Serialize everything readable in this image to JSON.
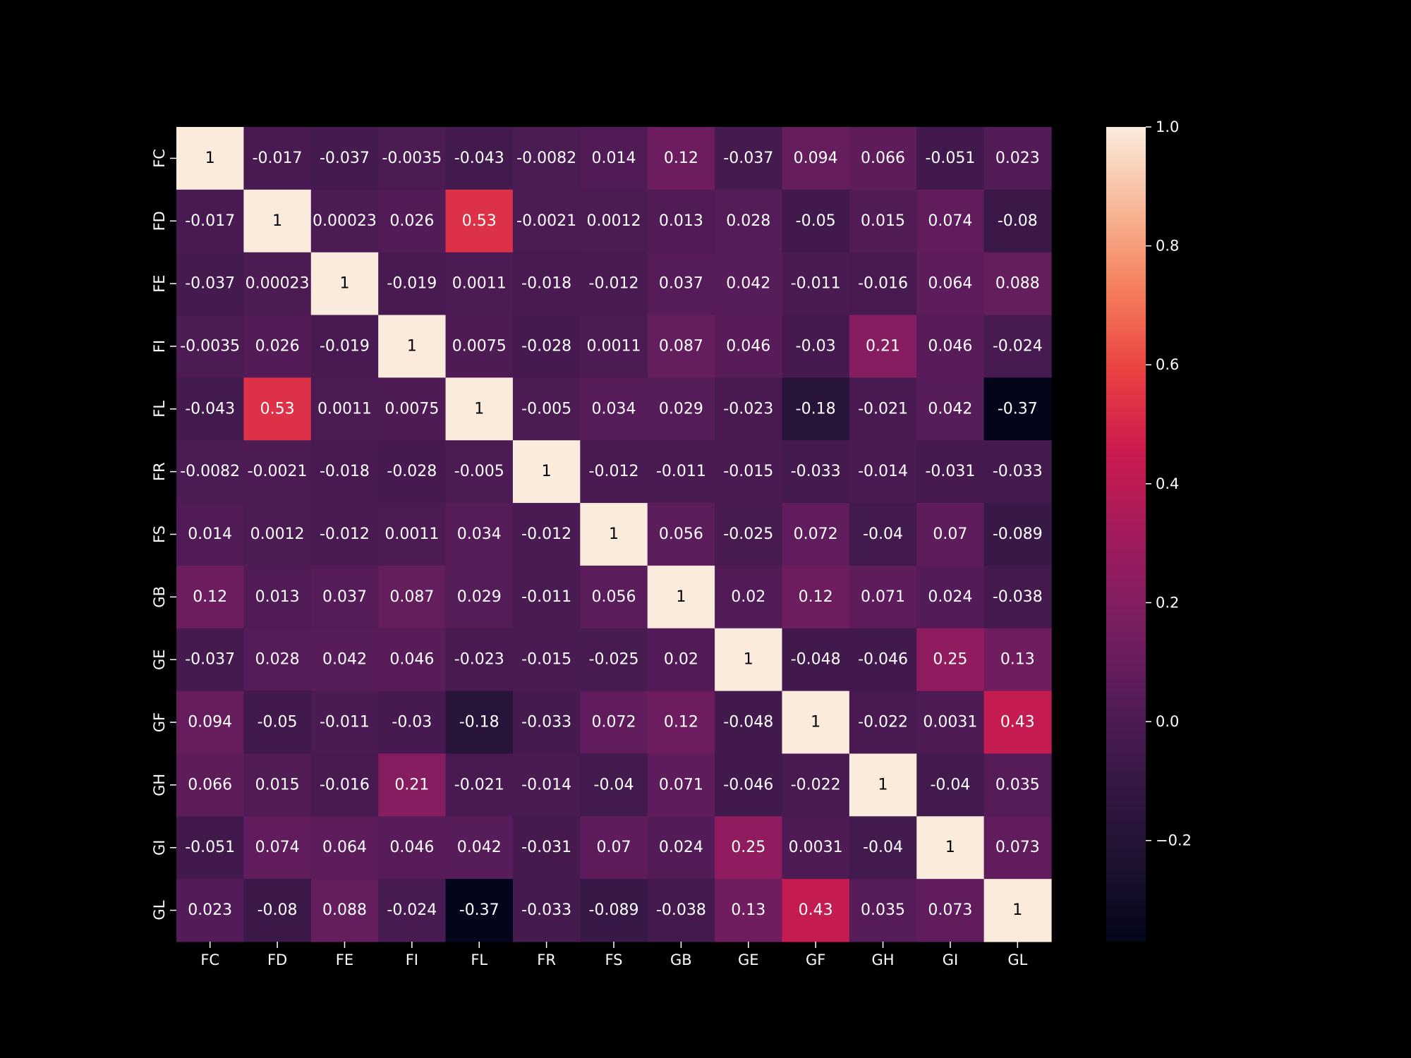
{
  "chart_data": {
    "type": "heatmap",
    "labels": [
      "FC",
      "FD",
      "FE",
      "FI",
      "FL",
      "FR",
      "FS",
      "GB",
      "GE",
      "GF",
      "GH",
      "GI",
      "GL"
    ],
    "matrix": [
      [
        1,
        -0.017,
        -0.037,
        -0.0035,
        -0.043,
        -0.0082,
        0.014,
        0.12,
        -0.037,
        0.094,
        0.066,
        -0.051,
        0.023
      ],
      [
        -0.017,
        1,
        0.00023,
        0.026,
        0.53,
        -0.0021,
        0.0012,
        0.013,
        0.028,
        -0.05,
        0.015,
        0.074,
        -0.08
      ],
      [
        -0.037,
        0.00023,
        1,
        -0.019,
        0.0011,
        -0.018,
        -0.012,
        0.037,
        0.042,
        -0.011,
        -0.016,
        0.064,
        0.088
      ],
      [
        -0.0035,
        0.026,
        -0.019,
        1,
        0.0075,
        -0.028,
        0.0011,
        0.087,
        0.046,
        -0.03,
        0.21,
        0.046,
        -0.024
      ],
      [
        -0.043,
        0.53,
        0.0011,
        0.0075,
        1,
        -0.005,
        0.034,
        0.029,
        -0.023,
        -0.18,
        -0.021,
        0.042,
        -0.37
      ],
      [
        -0.0082,
        -0.0021,
        -0.018,
        -0.028,
        -0.005,
        1,
        -0.012,
        -0.011,
        -0.015,
        -0.033,
        -0.014,
        -0.031,
        -0.033
      ],
      [
        0.014,
        0.0012,
        -0.012,
        0.0011,
        0.034,
        -0.012,
        1,
        0.056,
        -0.025,
        0.072,
        -0.04,
        0.07,
        -0.089
      ],
      [
        0.12,
        0.013,
        0.037,
        0.087,
        0.029,
        -0.011,
        0.056,
        1,
        0.02,
        0.12,
        0.071,
        0.024,
        -0.038
      ],
      [
        -0.037,
        0.028,
        0.042,
        0.046,
        -0.023,
        -0.015,
        -0.025,
        0.02,
        1,
        -0.048,
        -0.046,
        0.25,
        0.13
      ],
      [
        0.094,
        -0.05,
        -0.011,
        -0.03,
        -0.18,
        -0.033,
        0.072,
        0.12,
        -0.048,
        1,
        -0.022,
        0.0031,
        0.43
      ],
      [
        0.066,
        0.015,
        -0.016,
        0.21,
        -0.021,
        -0.014,
        -0.04,
        0.071,
        -0.046,
        -0.022,
        1,
        -0.04,
        0.035
      ],
      [
        -0.051,
        0.074,
        0.064,
        0.046,
        0.042,
        -0.031,
        0.07,
        0.024,
        0.25,
        0.0031,
        -0.04,
        1,
        0.073
      ],
      [
        0.023,
        -0.08,
        0.088,
        -0.024,
        -0.37,
        -0.033,
        -0.089,
        -0.038,
        0.13,
        0.43,
        0.035,
        0.073,
        1
      ]
    ],
    "vmin": -0.37,
    "vmax": 1.0,
    "colorbar_ticks": [
      "1.0",
      "0.8",
      "0.6",
      "0.4",
      "0.2",
      "0.0",
      "−0.2"
    ],
    "colorbar_tick_values": [
      1.0,
      0.8,
      0.6,
      0.4,
      0.2,
      0.0,
      -0.2
    ],
    "colormap": "rocket",
    "title": "",
    "xlabel": "",
    "ylabel": "",
    "colors": {
      "background": "#000000",
      "text_light": "#ffffff",
      "text_dark": "#000000"
    }
  }
}
